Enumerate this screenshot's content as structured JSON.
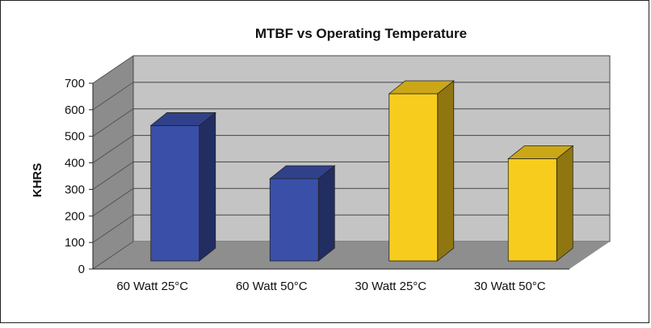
{
  "chart_data": {
    "type": "bar",
    "title": "MTBF vs Operating Temperature",
    "xlabel": "",
    "ylabel": "KHRS",
    "ylim": [
      0,
      700
    ],
    "yticks": [
      0,
      100,
      200,
      300,
      400,
      500,
      600,
      700
    ],
    "categories": [
      "60 Watt 25°C",
      "60 Watt 50°C",
      "30 Watt 25°C",
      "30 Watt 50°C"
    ],
    "values": [
      510,
      310,
      630,
      385
    ],
    "colors": [
      "#3a4fa8",
      "#3a4fa8",
      "#f8cc1c",
      "#f8cc1c"
    ],
    "grid": true,
    "legend": "none",
    "style": "3d"
  }
}
